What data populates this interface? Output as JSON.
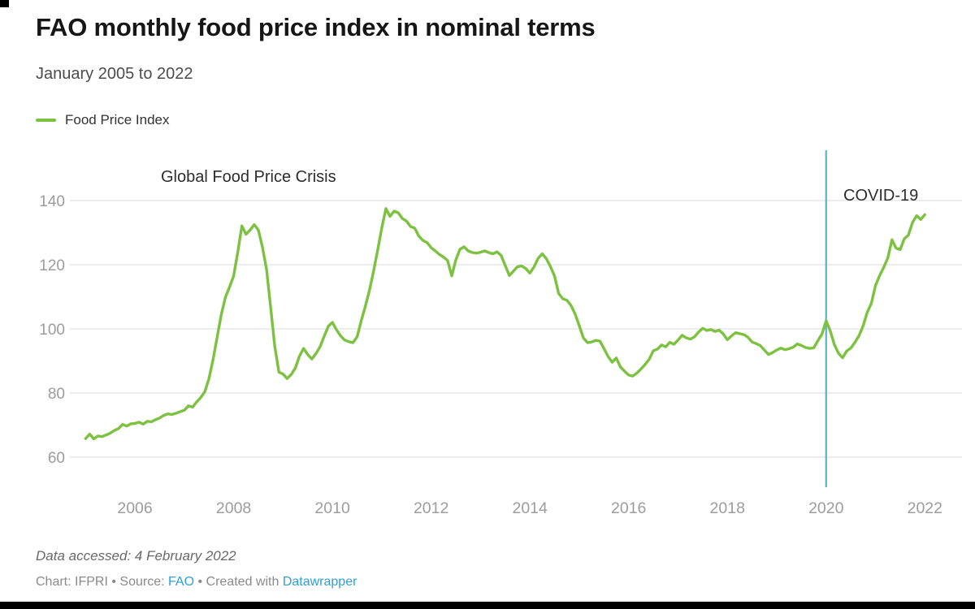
{
  "header": {
    "title": "FAO monthly food price index in nominal terms",
    "subtitle": "January 2005 to 2022"
  },
  "legend": {
    "label": "Food Price Index"
  },
  "annotations": {
    "crisis": "Global Food Price Crisis",
    "covid": "COVID-19"
  },
  "footer": {
    "data_accessed": "Data accessed: 4 February 2022",
    "chart_credit": "Chart: IFPRI",
    "separator": "•",
    "source_label": "Source:",
    "source_link": "FAO",
    "created_label": "Created with",
    "tool_link": "Datawrapper"
  },
  "colors": {
    "line": "#7dc141",
    "covid_line": "#56b4d3",
    "grid": "#e2e2e2",
    "axis_text": "#9c9c9c",
    "link": "#2e9fd4",
    "title_text": "#161616",
    "annotation_text": "#2d2d2d"
  },
  "chart_data": {
    "type": "line",
    "title": "FAO monthly food price index in nominal terms",
    "subtitle": "January 2005 to 2022",
    "xlabel": "",
    "ylabel": "",
    "frequency": "monthly",
    "start": "2005-01",
    "end": "2022-01",
    "x_tick_labels": [
      "2006",
      "2008",
      "2010",
      "2012",
      "2014",
      "2016",
      "2018",
      "2020",
      "2022"
    ],
    "y_ticks": [
      60,
      80,
      100,
      120,
      140
    ],
    "ylim": [
      50,
      156
    ],
    "grid": "horizontal",
    "legend_position": "top-left",
    "vertical_line": {
      "x": "2020-01",
      "label": "COVID-19"
    },
    "text_annotations": [
      {
        "text": "Global Food Price Crisis",
        "near": "2008 peak"
      },
      {
        "text": "COVID-19",
        "near": "2020 vertical line"
      }
    ],
    "series": [
      {
        "name": "Food Price Index",
        "values": [
          65.8,
          67.2,
          65.7,
          66.6,
          66.4,
          66.9,
          67.5,
          68.3,
          68.9,
          70.2,
          69.7,
          70.4,
          70.5,
          70.9,
          70.3,
          71.2,
          71.0,
          71.7,
          72.2,
          73.0,
          73.5,
          73.3,
          73.7,
          74.2,
          74.6,
          76.0,
          75.6,
          77.2,
          78.6,
          80.4,
          84.5,
          90.5,
          97.5,
          104.5,
          109.9,
          113.0,
          116.5,
          124.0,
          132.1,
          129.5,
          130.8,
          132.5,
          130.8,
          125.5,
          118.5,
          106.5,
          94.5,
          86.5,
          85.9,
          84.5,
          85.8,
          87.8,
          91.5,
          93.9,
          92.0,
          90.6,
          92.3,
          94.4,
          97.7,
          100.8,
          102.0,
          99.7,
          97.8,
          96.5,
          96.0,
          95.7,
          97.5,
          102.5,
          107.0,
          112.0,
          118.0,
          124.5,
          131.5,
          137.5,
          135.1,
          136.7,
          136.2,
          134.4,
          133.6,
          131.9,
          131.4,
          128.9,
          127.6,
          126.9,
          125.3,
          124.3,
          123.2,
          122.4,
          121.3,
          116.5,
          121.5,
          124.8,
          125.6,
          124.3,
          123.8,
          123.6,
          123.9,
          124.3,
          123.8,
          123.4,
          124.0,
          122.9,
          119.8,
          116.6,
          118.0,
          119.4,
          119.6,
          118.8,
          117.4,
          119.3,
          122.0,
          123.4,
          121.9,
          119.4,
          116.4,
          111.0,
          109.4,
          108.9,
          107.3,
          104.6,
          101.0,
          97.2,
          95.7,
          95.9,
          96.4,
          96.2,
          93.9,
          91.4,
          89.6,
          90.9,
          88.1,
          86.8,
          85.6,
          85.3,
          86.2,
          87.5,
          88.9,
          90.5,
          93.2,
          93.7,
          95.0,
          94.4,
          95.8,
          95.2,
          96.5,
          98.0,
          97.2,
          96.8,
          97.5,
          99.0,
          100.2,
          99.5,
          99.8,
          99.2,
          99.6,
          98.4,
          96.6,
          97.8,
          98.8,
          98.5,
          98.2,
          97.4,
          95.9,
          95.4,
          94.8,
          93.4,
          92.0,
          92.6,
          93.4,
          94.0,
          93.5,
          93.8,
          94.3,
          95.3,
          94.8,
          94.2,
          93.9,
          94.1,
          96.3,
          98.4,
          102.5,
          99.4,
          95.1,
          92.4,
          91.0,
          93.1,
          94.0,
          95.8,
          97.9,
          100.9,
          105.2,
          108.0,
          113.5,
          116.6,
          119.2,
          122.1,
          127.8,
          125.2,
          124.7,
          128.1,
          129.2,
          133.2,
          135.3,
          134.1,
          135.6
        ]
      }
    ]
  }
}
